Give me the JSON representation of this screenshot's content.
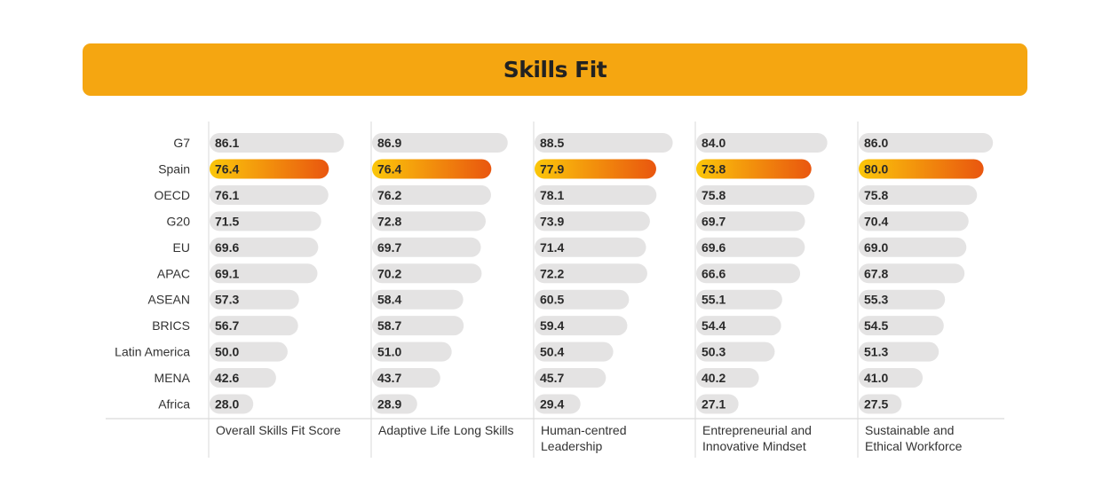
{
  "header": {
    "title": "Skills Fit"
  },
  "colors": {
    "title_bar": "#f5a611",
    "bar_default": "#e4e3e3",
    "highlight_start": "#fbc70a",
    "highlight_end": "#e9560f"
  },
  "chart_data": {
    "type": "bar",
    "orientation": "horizontal",
    "title": "Skills Fit",
    "highlight_category": "Spain",
    "categories": [
      "G7",
      "Spain",
      "OECD",
      "G20",
      "EU",
      "APAC",
      "ASEAN",
      "BRICS",
      "Latin America",
      "MENA",
      "Africa"
    ],
    "series": [
      {
        "name": [
          "Overall Skills Fit Score"
        ],
        "values": [
          86.1,
          76.4,
          76.1,
          71.5,
          69.6,
          69.1,
          57.3,
          56.7,
          50.0,
          42.6,
          28.0
        ]
      },
      {
        "name": [
          "Adaptive Life Long Skills"
        ],
        "values": [
          86.9,
          76.4,
          76.2,
          72.8,
          69.7,
          70.2,
          58.4,
          58.7,
          51.0,
          43.7,
          28.9
        ]
      },
      {
        "name": [
          "Human-centred",
          "Leadership"
        ],
        "values": [
          88.5,
          77.9,
          78.1,
          73.9,
          71.4,
          72.2,
          60.5,
          59.4,
          50.4,
          45.7,
          29.4
        ]
      },
      {
        "name": [
          "Entrepreneurial and",
          "Innovative Mindset"
        ],
        "values": [
          84.0,
          73.8,
          75.8,
          69.7,
          69.6,
          66.6,
          55.1,
          54.4,
          50.3,
          40.2,
          27.1
        ]
      },
      {
        "name": [
          "Sustainable and",
          "Ethical Workforce"
        ],
        "values": [
          86.0,
          80.0,
          75.8,
          70.4,
          69.0,
          67.8,
          55.3,
          54.5,
          51.3,
          41.0,
          27.5
        ]
      }
    ],
    "value_labels": [
      [
        "86.1",
        "76.4",
        "76.1",
        "71.5",
        "69.6",
        "69.1",
        "57.3",
        "56.7",
        "50.0",
        "42.6",
        "28.0"
      ],
      [
        "86.9",
        "76.4",
        "76.2",
        "72.8",
        "69.7",
        "70.2",
        "58.4",
        "58.7",
        "51.0",
        "43.7",
        "28.9"
      ],
      [
        "88.5",
        "77.9",
        "78.1",
        "73.9",
        "71.4",
        "72.2",
        "60.5",
        "59.4",
        "50.4",
        "45.7",
        "29.4"
      ],
      [
        "84.0",
        "73.8",
        "75.8",
        "69.7",
        "69.6",
        "66.6",
        "55.1",
        "54.4",
        "50.3",
        "40.2",
        "27.1"
      ],
      [
        "86.0",
        "80.0",
        "75.8",
        "70.4",
        "69.0",
        "67.8",
        "55.3",
        "54.5",
        "51.3",
        "41.0",
        "27.5"
      ]
    ],
    "xlim": [
      0,
      100
    ],
    "grid": false,
    "legend": "none"
  }
}
